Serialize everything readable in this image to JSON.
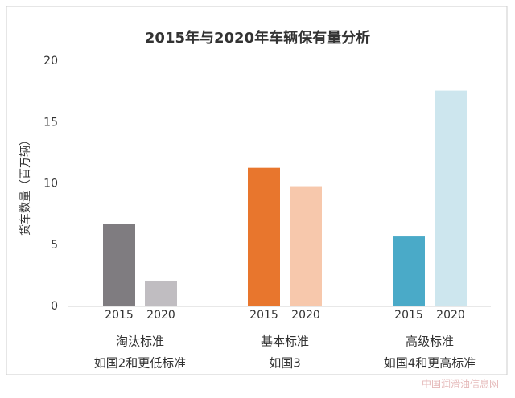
{
  "chart_data": {
    "type": "bar",
    "title": "2015年与2020年车辆保有量分析",
    "ylabel": "货车数量（百万辆）",
    "ylim": [
      0,
      20
    ],
    "yticks": [
      0,
      5,
      10,
      15,
      20
    ],
    "groups": [
      {
        "name": "淘汰标准",
        "subtitle": "如国2和更低标准",
        "bars": [
          {
            "label": "2015",
            "value": 6.7,
            "color": "#7f7c80"
          },
          {
            "label": "2020",
            "value": 2.1,
            "color": "#c0bdc1"
          }
        ]
      },
      {
        "name": "基本标准",
        "subtitle": "如国3",
        "bars": [
          {
            "label": "2015",
            "value": 11.3,
            "color": "#e8762d"
          },
          {
            "label": "2020",
            "value": 9.8,
            "color": "#f7c8ac"
          }
        ]
      },
      {
        "name": "高级标准",
        "subtitle": "如国4和更高标准",
        "bars": [
          {
            "label": "2015",
            "value": 5.7,
            "color": "#4aaac8"
          },
          {
            "label": "2020",
            "value": 17.6,
            "color": "#cde6ee"
          }
        ]
      }
    ],
    "watermark": "中国润滑油信息网"
  }
}
